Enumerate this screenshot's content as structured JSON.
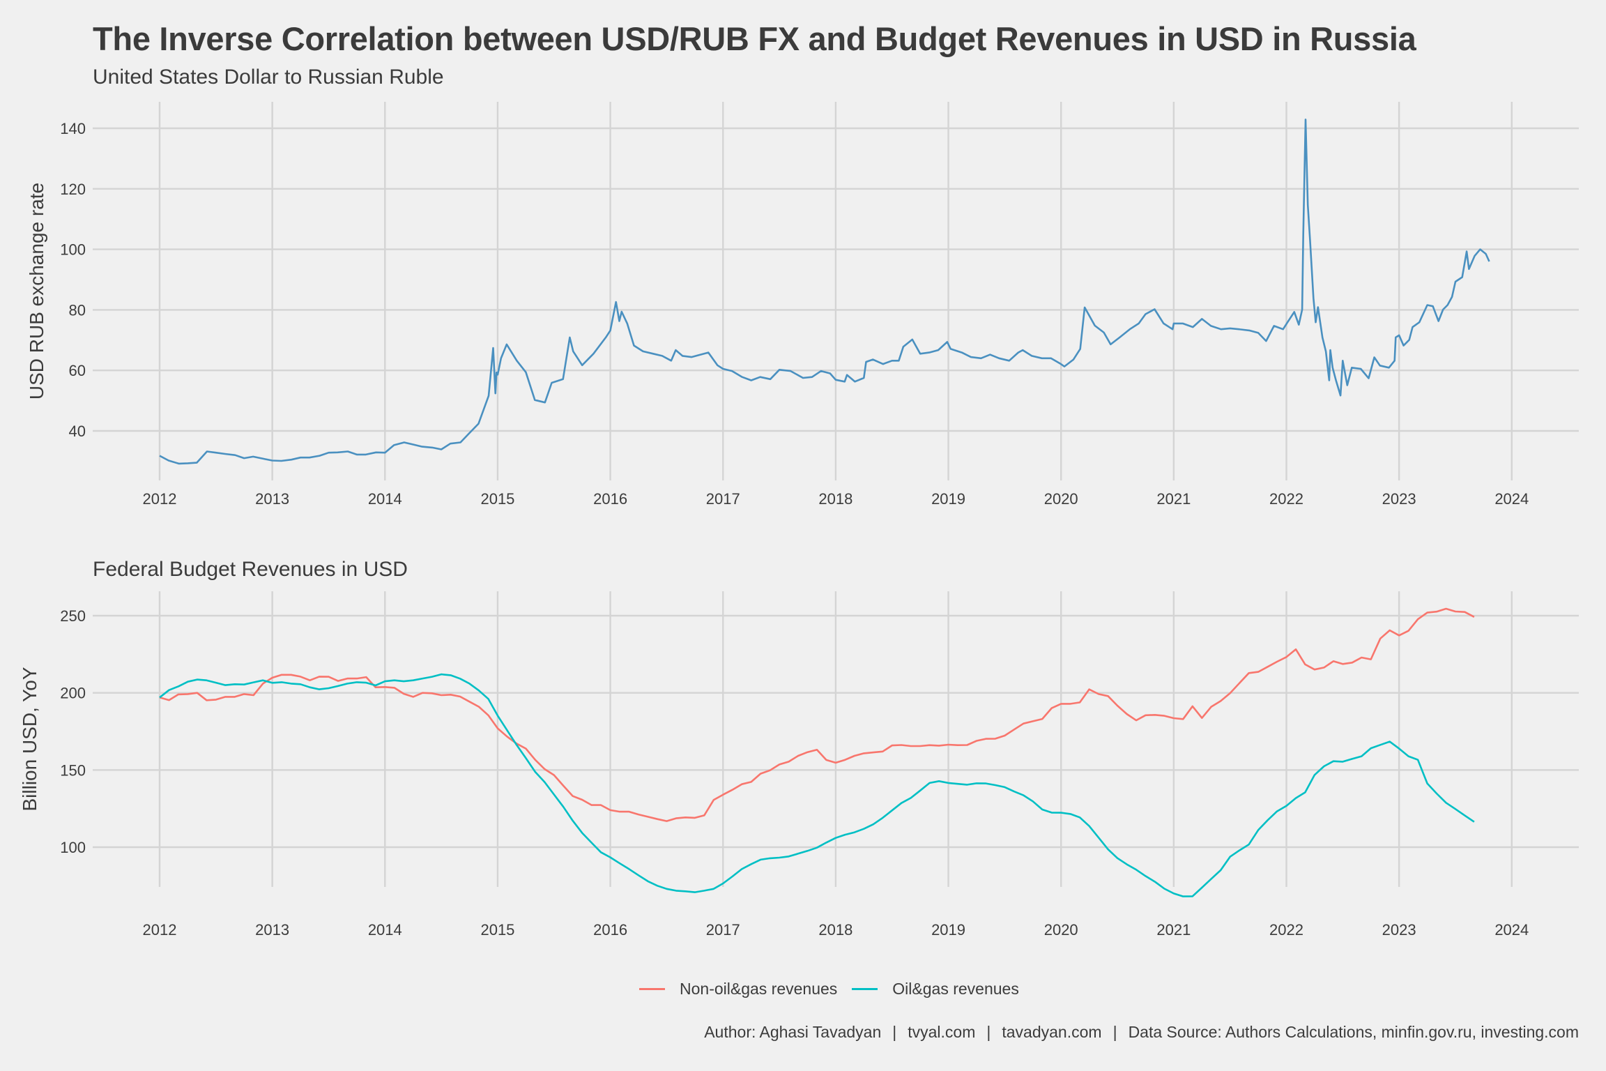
{
  "title": "The Inverse Correlation between USD/RUB FX and Budget Revenues in USD in Russia",
  "footer": {
    "author": "Author: Aghasi Tavadyan",
    "site1": "tvyal.com",
    "site2": "tavadyan.com",
    "source": "Data Source: Authors Calculations, minfin.gov.ru, investing.com",
    "separator": "|"
  },
  "chart_data": [
    {
      "type": "line",
      "title": "United States Dollar to Russian Ruble",
      "xlabel": "",
      "ylabel": "USD RUB exchange rate",
      "xlim": [
        2011.87,
        2024.46
      ],
      "ylim": [
        24.5,
        148
      ],
      "x_ticks": [
        2012,
        2013,
        2014,
        2015,
        2016,
        2017,
        2018,
        2019,
        2020,
        2021,
        2022,
        2023,
        2024
      ],
      "y_ticks": [
        40,
        60,
        80,
        100,
        120,
        140
      ],
      "grid": true,
      "color": "#4a90c0",
      "series": [
        {
          "name": "USD/RUB",
          "x": [
            2012.0,
            2012.08,
            2012.17,
            2012.25,
            2012.33,
            2012.42,
            2012.5,
            2012.58,
            2012.67,
            2012.75,
            2012.83,
            2012.92,
            2013.0,
            2013.08,
            2013.17,
            2013.25,
            2013.33,
            2013.42,
            2013.5,
            2013.58,
            2013.67,
            2013.75,
            2013.83,
            2013.92,
            2014.0,
            2014.08,
            2014.17,
            2014.25,
            2014.33,
            2014.42,
            2014.5,
            2014.58,
            2014.67,
            2014.75,
            2014.83,
            2014.92,
            2014.96,
            2014.98,
            2014.99,
            2015.0,
            2015.03,
            2015.08,
            2015.17,
            2015.25,
            2015.33,
            2015.42,
            2015.48,
            2015.58,
            2015.64,
            2015.67,
            2015.75,
            2015.85,
            2015.96,
            2016.0,
            2016.05,
            2016.08,
            2016.1,
            2016.15,
            2016.21,
            2016.29,
            2016.38,
            2016.46,
            2016.54,
            2016.58,
            2016.64,
            2016.72,
            2016.87,
            2016.95,
            2017.0,
            2017.08,
            2017.17,
            2017.25,
            2017.33,
            2017.42,
            2017.5,
            2017.6,
            2017.71,
            2017.79,
            2017.87,
            2017.95,
            2018.0,
            2018.08,
            2018.1,
            2018.17,
            2018.25,
            2018.27,
            2018.33,
            2018.42,
            2018.5,
            2018.56,
            2018.6,
            2018.68,
            2018.75,
            2018.83,
            2018.91,
            2018.99,
            2019.02,
            2019.12,
            2019.2,
            2019.29,
            2019.37,
            2019.45,
            2019.54,
            2019.62,
            2019.66,
            2019.74,
            2019.83,
            2019.91,
            2019.99,
            2020.03,
            2020.11,
            2020.17,
            2020.21,
            2020.3,
            2020.38,
            2020.44,
            2020.52,
            2020.61,
            2020.69,
            2020.75,
            2020.83,
            2020.91,
            2020.99,
            2021.0,
            2021.08,
            2021.17,
            2021.25,
            2021.33,
            2021.42,
            2021.5,
            2021.58,
            2021.67,
            2021.75,
            2021.82,
            2021.89,
            2021.97,
            2022.01,
            2022.07,
            2022.11,
            2022.14,
            2022.15,
            2022.17,
            2022.19,
            2022.21,
            2022.24,
            2022.26,
            2022.28,
            2022.32,
            2022.35,
            2022.38,
            2022.39,
            2022.41,
            2022.44,
            2022.48,
            2022.5,
            2022.54,
            2022.58,
            2022.66,
            2022.73,
            2022.78,
            2022.83,
            2022.91,
            2022.96,
            2022.97,
            2023.0,
            2023.04,
            2023.09,
            2023.12,
            2023.18,
            2023.25,
            2023.3,
            2023.35,
            2023.39,
            2023.43,
            2023.47,
            2023.5,
            2023.56,
            2023.6,
            2023.62,
            2023.67,
            2023.72,
            2023.77,
            2023.8
          ],
          "values": [
            31.8,
            30.2,
            29.2,
            29.3,
            29.5,
            33.2,
            32.8,
            32.4,
            32.0,
            31.0,
            31.5,
            30.8,
            30.2,
            30.1,
            30.5,
            31.2,
            31.2,
            31.8,
            32.8,
            32.9,
            33.2,
            32.2,
            32.2,
            32.9,
            32.8,
            35.3,
            36.2,
            35.5,
            34.8,
            34.5,
            33.9,
            35.8,
            36.2,
            39.3,
            42.4,
            51.6,
            67.4,
            52.4,
            59.3,
            58.6,
            64.0,
            68.6,
            63.2,
            59.4,
            50.2,
            49.4,
            55.9,
            57.1,
            70.9,
            66.3,
            61.7,
            65.5,
            70.9,
            73.2,
            82.6,
            76.3,
            79.4,
            75.5,
            68.2,
            66.3,
            65.5,
            64.8,
            63.2,
            66.7,
            64.8,
            64.4,
            65.9,
            61.7,
            60.5,
            59.8,
            57.8,
            56.7,
            57.8,
            57.1,
            60.2,
            59.8,
            57.5,
            57.8,
            59.8,
            59.0,
            56.9,
            56.3,
            58.5,
            56.3,
            57.5,
            62.8,
            63.6,
            62.1,
            63.2,
            63.2,
            67.8,
            70.2,
            65.5,
            65.9,
            66.7,
            69.4,
            67.1,
            65.9,
            64.4,
            64.0,
            65.2,
            64.0,
            63.2,
            65.9,
            66.7,
            64.8,
            64.0,
            64.0,
            62.3,
            61.3,
            63.6,
            67.1,
            80.8,
            74.8,
            72.5,
            68.6,
            70.9,
            73.6,
            75.5,
            78.6,
            80.2,
            75.5,
            73.6,
            75.5,
            75.5,
            74.3,
            77.0,
            74.7,
            73.6,
            73.9,
            73.6,
            73.2,
            72.4,
            69.7,
            74.7,
            73.6,
            75.9,
            79.3,
            75.1,
            80.1,
            105.0,
            142.9,
            114.7,
            103.1,
            83.9,
            75.9,
            80.9,
            70.9,
            66.3,
            56.7,
            66.7,
            60.9,
            56.7,
            51.7,
            63.2,
            55.1,
            60.9,
            60.5,
            57.4,
            64.3,
            61.6,
            60.9,
            63.2,
            70.9,
            71.6,
            68.2,
            70.1,
            74.3,
            75.9,
            81.6,
            81.2,
            76.3,
            80.1,
            81.6,
            84.3,
            89.3,
            90.8,
            99.3,
            93.5,
            97.8,
            100.0,
            98.5,
            96.0
          ]
        }
      ]
    },
    {
      "type": "line",
      "title": "Federal Budget Revenues in USD",
      "xlabel": "",
      "ylabel": "Billion USD, YoY",
      "xlim": [
        2011.87,
        2024.46
      ],
      "ylim": [
        58,
        265
      ],
      "x_ticks": [
        2012,
        2013,
        2014,
        2015,
        2016,
        2017,
        2018,
        2019,
        2020,
        2021,
        2022,
        2023,
        2024
      ],
      "y_ticks": [
        100,
        150,
        200,
        250
      ],
      "grid": true,
      "legend": "bottom",
      "x_start": 2012.0,
      "x_step_months": 1,
      "series": [
        {
          "name": "Non-oil&gas revenues",
          "color": "#f8766d",
          "values": [
            197.0,
            195.3,
            199.0,
            199.2,
            200.0,
            195.2,
            195.6,
            197.4,
            197.4,
            199.2,
            198.5,
            206.0,
            209.8,
            211.7,
            211.7,
            210.5,
            208.1,
            210.5,
            210.4,
            207.7,
            209.3,
            209.3,
            210.2,
            203.6,
            203.8,
            203.3,
            199.4,
            197.4,
            200.0,
            199.7,
            198.5,
            198.8,
            197.6,
            194.3,
            191.0,
            185.5,
            177.0,
            171.7,
            167.2,
            163.9,
            156.6,
            150.6,
            146.7,
            139.8,
            133.1,
            130.7,
            127.3,
            127.3,
            124.0,
            123.0,
            123.0,
            121.2,
            119.7,
            118.2,
            116.9,
            118.7,
            119.3,
            119.0,
            120.6,
            130.6,
            134.0,
            137.2,
            140.8,
            142.3,
            147.6,
            149.8,
            153.6,
            155.4,
            159.2,
            161.6,
            163.1,
            156.5,
            154.7,
            156.6,
            159.2,
            160.8,
            161.4,
            162.0,
            165.9,
            166.2,
            165.5,
            165.5,
            166.1,
            165.8,
            166.4,
            166.1,
            166.2,
            168.9,
            170.2,
            170.3,
            172.3,
            176.2,
            180.1,
            181.6,
            183.1,
            190.1,
            192.9,
            192.9,
            193.8,
            202.3,
            199.2,
            197.9,
            191.7,
            186.3,
            182.2,
            185.5,
            185.7,
            185.1,
            183.6,
            183.0,
            191.3,
            183.7,
            191.0,
            194.7,
            199.8,
            206.3,
            212.8,
            213.6,
            216.9,
            220.2,
            223.2,
            228.2,
            218.4,
            215.1,
            216.4,
            220.5,
            218.7,
            219.6,
            222.9,
            221.7,
            235.2,
            240.5,
            237.2,
            240.2,
            247.7,
            252.0,
            252.6,
            254.5,
            252.7,
            252.4,
            249.2
          ]
        },
        {
          "name": "Oil&gas revenues",
          "color": "#00bfc4",
          "values": [
            197.0,
            201.8,
            204.2,
            207.2,
            208.6,
            208.1,
            206.6,
            205.0,
            205.6,
            205.4,
            206.8,
            208.1,
            206.5,
            206.9,
            206.0,
            205.6,
            203.6,
            202.3,
            203.0,
            204.4,
            206.0,
            206.9,
            206.6,
            204.8,
            207.5,
            208.1,
            207.5,
            208.1,
            209.3,
            210.4,
            212.0,
            211.4,
            209.2,
            206.0,
            201.5,
            196.1,
            185.2,
            175.8,
            166.4,
            157.7,
            148.8,
            142.2,
            134.1,
            126.1,
            117.1,
            109.2,
            102.9,
            96.7,
            93.4,
            89.5,
            85.8,
            81.8,
            77.9,
            75.0,
            73.0,
            71.8,
            71.4,
            70.8,
            71.8,
            73.0,
            76.5,
            81.0,
            85.8,
            89.0,
            91.9,
            92.8,
            93.2,
            94.0,
            95.8,
            97.6,
            99.7,
            103.0,
            106.0,
            108.1,
            109.6,
            111.9,
            114.8,
            119.0,
            123.8,
            128.6,
            131.9,
            136.7,
            141.6,
            142.8,
            141.6,
            141.0,
            140.5,
            141.4,
            141.3,
            140.2,
            138.9,
            136.1,
            133.6,
            129.7,
            124.4,
            122.4,
            122.3,
            121.5,
            119.3,
            113.7,
            106.2,
            98.6,
            92.9,
            88.9,
            85.4,
            81.3,
            77.6,
            73.1,
            70.0,
            68.1,
            68.2,
            73.8,
            79.5,
            85.1,
            93.8,
            97.9,
            101.7,
            111.1,
            117.5,
            123.2,
            126.8,
            131.8,
            135.5,
            146.8,
            152.4,
            155.7,
            155.4,
            157.2,
            158.9,
            164.1,
            166.3,
            168.4,
            163.9,
            158.9,
            156.6,
            141.3,
            134.8,
            128.8,
            124.7,
            120.5,
            116.4
          ]
        }
      ]
    }
  ]
}
